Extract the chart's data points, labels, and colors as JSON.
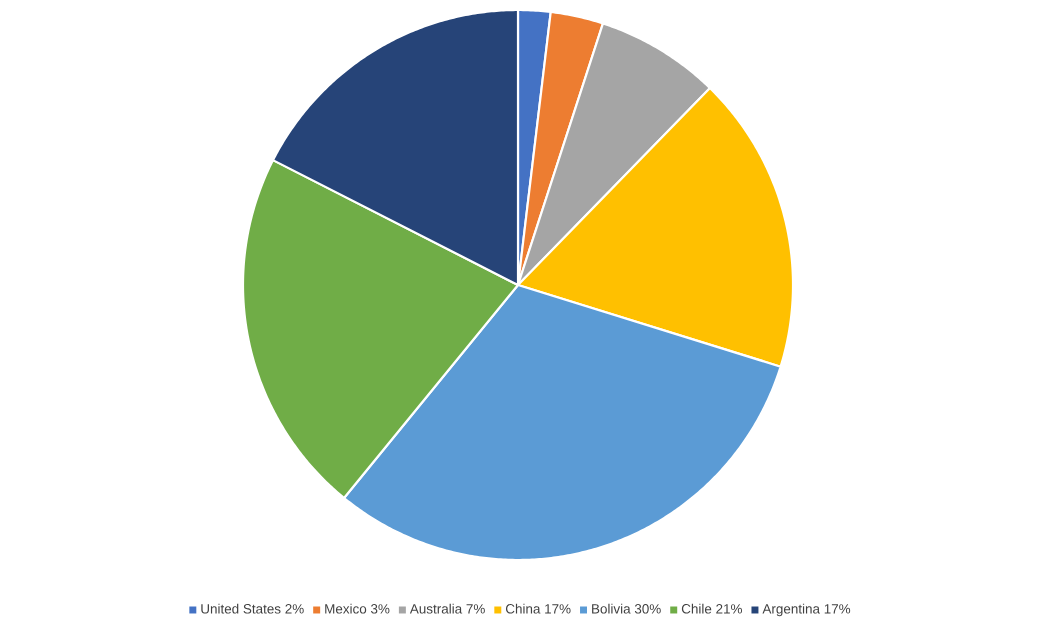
{
  "chart_data": {
    "type": "pie",
    "categories": [
      "United States 2%",
      "Mexico 3%",
      "Australia 7%",
      "China 17%",
      "Bolivia 30%",
      "Chile 21%",
      "Argentina 17%"
    ],
    "values": [
      1.9,
      3.1,
      7.3,
      17.5,
      31.1,
      21.6,
      17.5
    ],
    "colors": [
      "#4472c4",
      "#ed7d31",
      "#a5a5a5",
      "#ffc000",
      "#5b9bd5",
      "#70ad47",
      "#264478"
    ],
    "legend": "bottom"
  }
}
